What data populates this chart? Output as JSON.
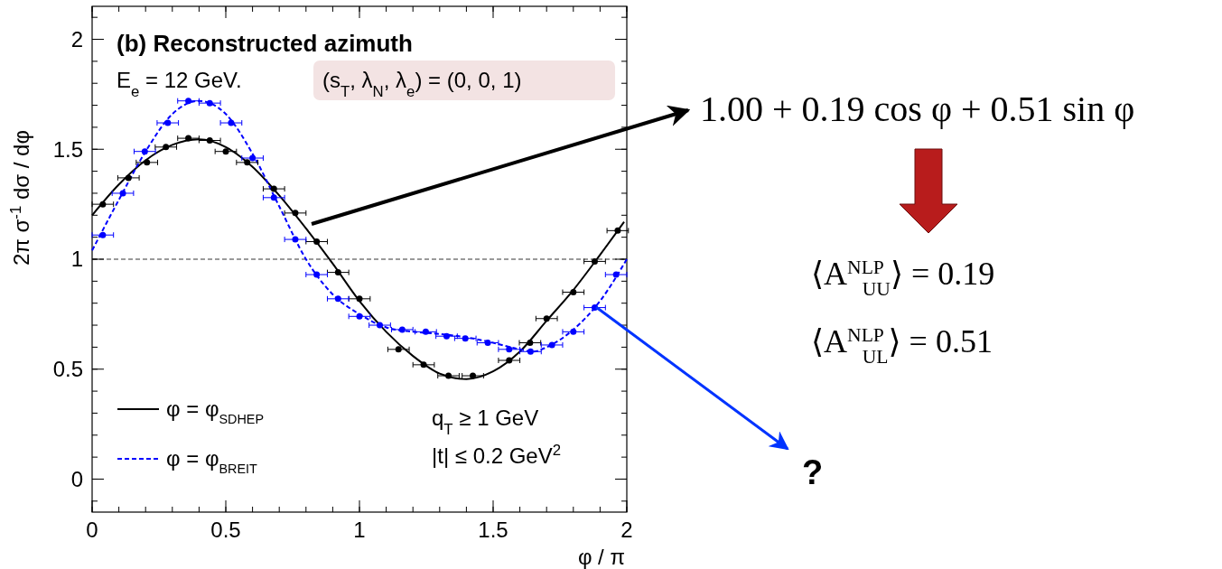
{
  "chart_data": {
    "type": "line",
    "title": "(b) Reconstructed azimuth",
    "xlabel": "φ / π",
    "ylabel": "2π σ$^{-1}$ dσ / dφ",
    "xlim": [
      0,
      2
    ],
    "xticks": [
      0,
      0.5,
      1,
      1.5,
      2
    ],
    "ylim": [
      -0.15,
      2.15
    ],
    "yticks": [
      0,
      0.5,
      1,
      1.5,
      2
    ],
    "legend": "bottom left",
    "ref_lines": [
      {
        "axis": "y",
        "value": 1,
        "line_style": "dashed",
        "color": "#000000"
      }
    ],
    "series": [
      {
        "name": "φ = φ$_{SDHEP}$",
        "color": "#000000",
        "line_style": "solid",
        "marker": "none",
        "x": [
          0,
          0.1,
          0.2,
          0.3,
          0.4,
          0.5,
          0.6,
          0.7,
          0.8,
          0.9,
          1.0,
          1.1,
          1.2,
          1.3,
          1.4,
          1.5,
          1.6,
          1.7,
          1.8,
          1.9,
          1.99
        ],
        "values": [
          1.2,
          1.34,
          1.45,
          1.52,
          1.545,
          1.51,
          1.42,
          1.29,
          1.14,
          0.98,
          0.81,
          0.67,
          0.56,
          0.48,
          0.455,
          0.49,
          0.58,
          0.72,
          0.86,
          1.02,
          1.17
        ]
      },
      {
        "name": "φ = φ$_{BREIT}$",
        "color": "#0000ff",
        "line_style": "dashed",
        "marker": "none",
        "x": [
          0,
          0.1,
          0.2,
          0.3,
          0.4,
          0.5,
          0.6,
          0.7,
          0.8,
          0.9,
          1.0,
          1.1,
          1.2,
          1.3,
          1.4,
          1.5,
          1.6,
          1.65,
          1.7,
          1.8,
          1.9,
          2.0
        ],
        "values": [
          1.04,
          1.27,
          1.49,
          1.66,
          1.72,
          1.66,
          1.48,
          1.24,
          1.0,
          0.84,
          0.75,
          0.69,
          0.67,
          0.66,
          0.645,
          0.62,
          0.59,
          0.58,
          0.6,
          0.68,
          0.81,
          1.0
        ]
      },
      {
        "type": "scatter",
        "color": "#000000",
        "marker": "circle",
        "x": [
          0.04,
          0.136,
          0.205,
          0.276,
          0.36,
          0.44,
          0.5,
          0.58,
          0.68,
          0.76,
          0.84,
          0.92,
          1.0,
          1.146,
          1.24,
          1.333,
          1.424,
          1.56,
          1.638,
          1.7,
          1.8,
          1.88,
          1.966
        ],
        "values": [
          1.25,
          1.37,
          1.44,
          1.51,
          1.55,
          1.54,
          1.49,
          1.44,
          1.32,
          1.21,
          1.08,
          0.94,
          0.82,
          0.59,
          0.52,
          0.47,
          0.47,
          0.54,
          0.62,
          0.73,
          0.85,
          0.99,
          1.13
        ],
        "xerrors": [
          0.04,
          0.04,
          0.04,
          0.04,
          0.04,
          0.04,
          0.04,
          0.04,
          0.04,
          0.04,
          0.04,
          0.04,
          0.04,
          0.04,
          0.04,
          0.04,
          0.04,
          0.04,
          0.04,
          0.04,
          0.04,
          0.04,
          0.04
        ]
      },
      {
        "type": "scatter",
        "color": "#0000ff",
        "marker": "circle",
        "x": [
          0.04,
          0.115,
          0.197,
          0.283,
          0.36,
          0.44,
          0.52,
          0.6,
          0.68,
          0.76,
          0.84,
          0.92,
          1.0,
          1.076,
          1.16,
          1.248,
          1.326,
          1.396,
          1.48,
          1.56,
          1.64,
          1.72,
          1.8,
          1.88,
          1.96
        ],
        "values": [
          1.11,
          1.3,
          1.49,
          1.62,
          1.72,
          1.71,
          1.62,
          1.46,
          1.28,
          1.09,
          0.93,
          0.82,
          0.74,
          0.7,
          0.68,
          0.67,
          0.65,
          0.64,
          0.62,
          0.59,
          0.58,
          0.61,
          0.67,
          0.78,
          0.93
        ],
        "xerrors": [
          0.04,
          0.04,
          0.04,
          0.04,
          0.04,
          0.04,
          0.04,
          0.04,
          0.04,
          0.04,
          0.04,
          0.04,
          0.04,
          0.04,
          0.04,
          0.04,
          0.04,
          0.04,
          0.04,
          0.04,
          0.04,
          0.04,
          0.04,
          0.04,
          0.04
        ]
      }
    ],
    "annotations": [
      "E$_{e}$ = 12 GeV.",
      "(s$_{T}$, λ$_{N}$, λ$_{e}$) = (0, 0, 1)",
      "q$_{T}$ ≥ 1 GeV",
      "|t| ≤ 0.2 GeV$^{2}$",
      "1.00 + 0.19 cos φ + 0.51 sin φ",
      "⟨A$^{NLP}$$_{UU}$⟩ = 0.19",
      "⟨A$^{NLP}$$_{UL}$⟩ = 0.51",
      "?"
    ]
  }
}
